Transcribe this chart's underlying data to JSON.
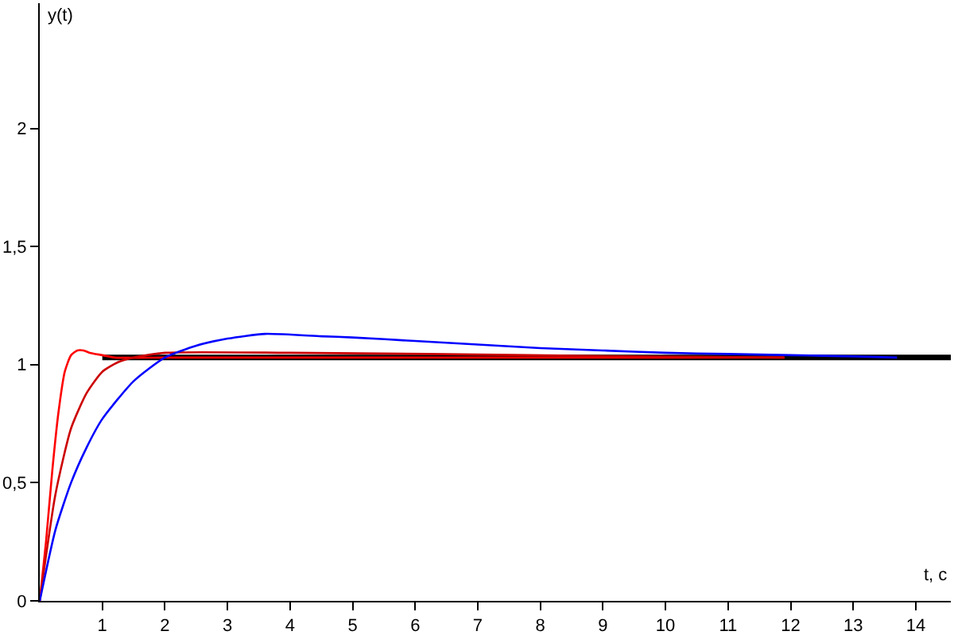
{
  "chart_data": {
    "type": "line",
    "xlabel": "t, c",
    "ylabel": "y(t)",
    "xlim": [
      0,
      14.56
    ],
    "ylim": [
      0,
      2.53
    ],
    "xticks": [
      1,
      2,
      3,
      4,
      5,
      6,
      7,
      8,
      9,
      10,
      11,
      12,
      13,
      14
    ],
    "yticks": [
      0,
      {
        "value": 0.5,
        "label": "0,5"
      },
      1,
      {
        "value": 1.5,
        "label": "1,5"
      },
      2
    ],
    "series": [
      {
        "color": "#000000",
        "x": [
          1,
          14.56
        ],
        "values": [
          1.03,
          1.03
        ]
      },
      {
        "color": "#ff0000",
        "x": [
          0,
          0.1,
          0.2,
          0.3,
          0.4,
          0.5,
          0.6,
          0.7,
          0.8,
          1.0,
          1.2,
          2,
          6,
          9.4,
          11.9
        ],
        "values": [
          0,
          0.25,
          0.55,
          0.8,
          0.97,
          1.04,
          1.06,
          1.06,
          1.05,
          1.04,
          1.03,
          1.03,
          1.03,
          1.03,
          1.03
        ]
      },
      {
        "color": "#cc0000",
        "x": [
          0,
          0.25,
          0.5,
          0.75,
          1,
          1.25,
          1.5,
          2,
          4,
          6.2,
          9.4,
          11.9
        ],
        "values": [
          0,
          0.45,
          0.73,
          0.88,
          0.97,
          1.01,
          1.03,
          1.05,
          1.05,
          1.045,
          1.035,
          1.03
        ]
      },
      {
        "color": "#0000ff",
        "x": [
          0,
          0.25,
          0.5,
          0.75,
          1,
          1.5,
          2,
          2.5,
          3,
          3.6,
          4.5,
          5,
          6,
          7,
          8,
          9,
          10,
          11,
          12,
          13,
          13.7
        ],
        "values": [
          0,
          0.3,
          0.5,
          0.65,
          0.77,
          0.93,
          1.03,
          1.08,
          1.11,
          1.13,
          1.12,
          1.115,
          1.1,
          1.085,
          1.07,
          1.06,
          1.05,
          1.045,
          1.04,
          1.035,
          1.03
        ]
      }
    ]
  }
}
